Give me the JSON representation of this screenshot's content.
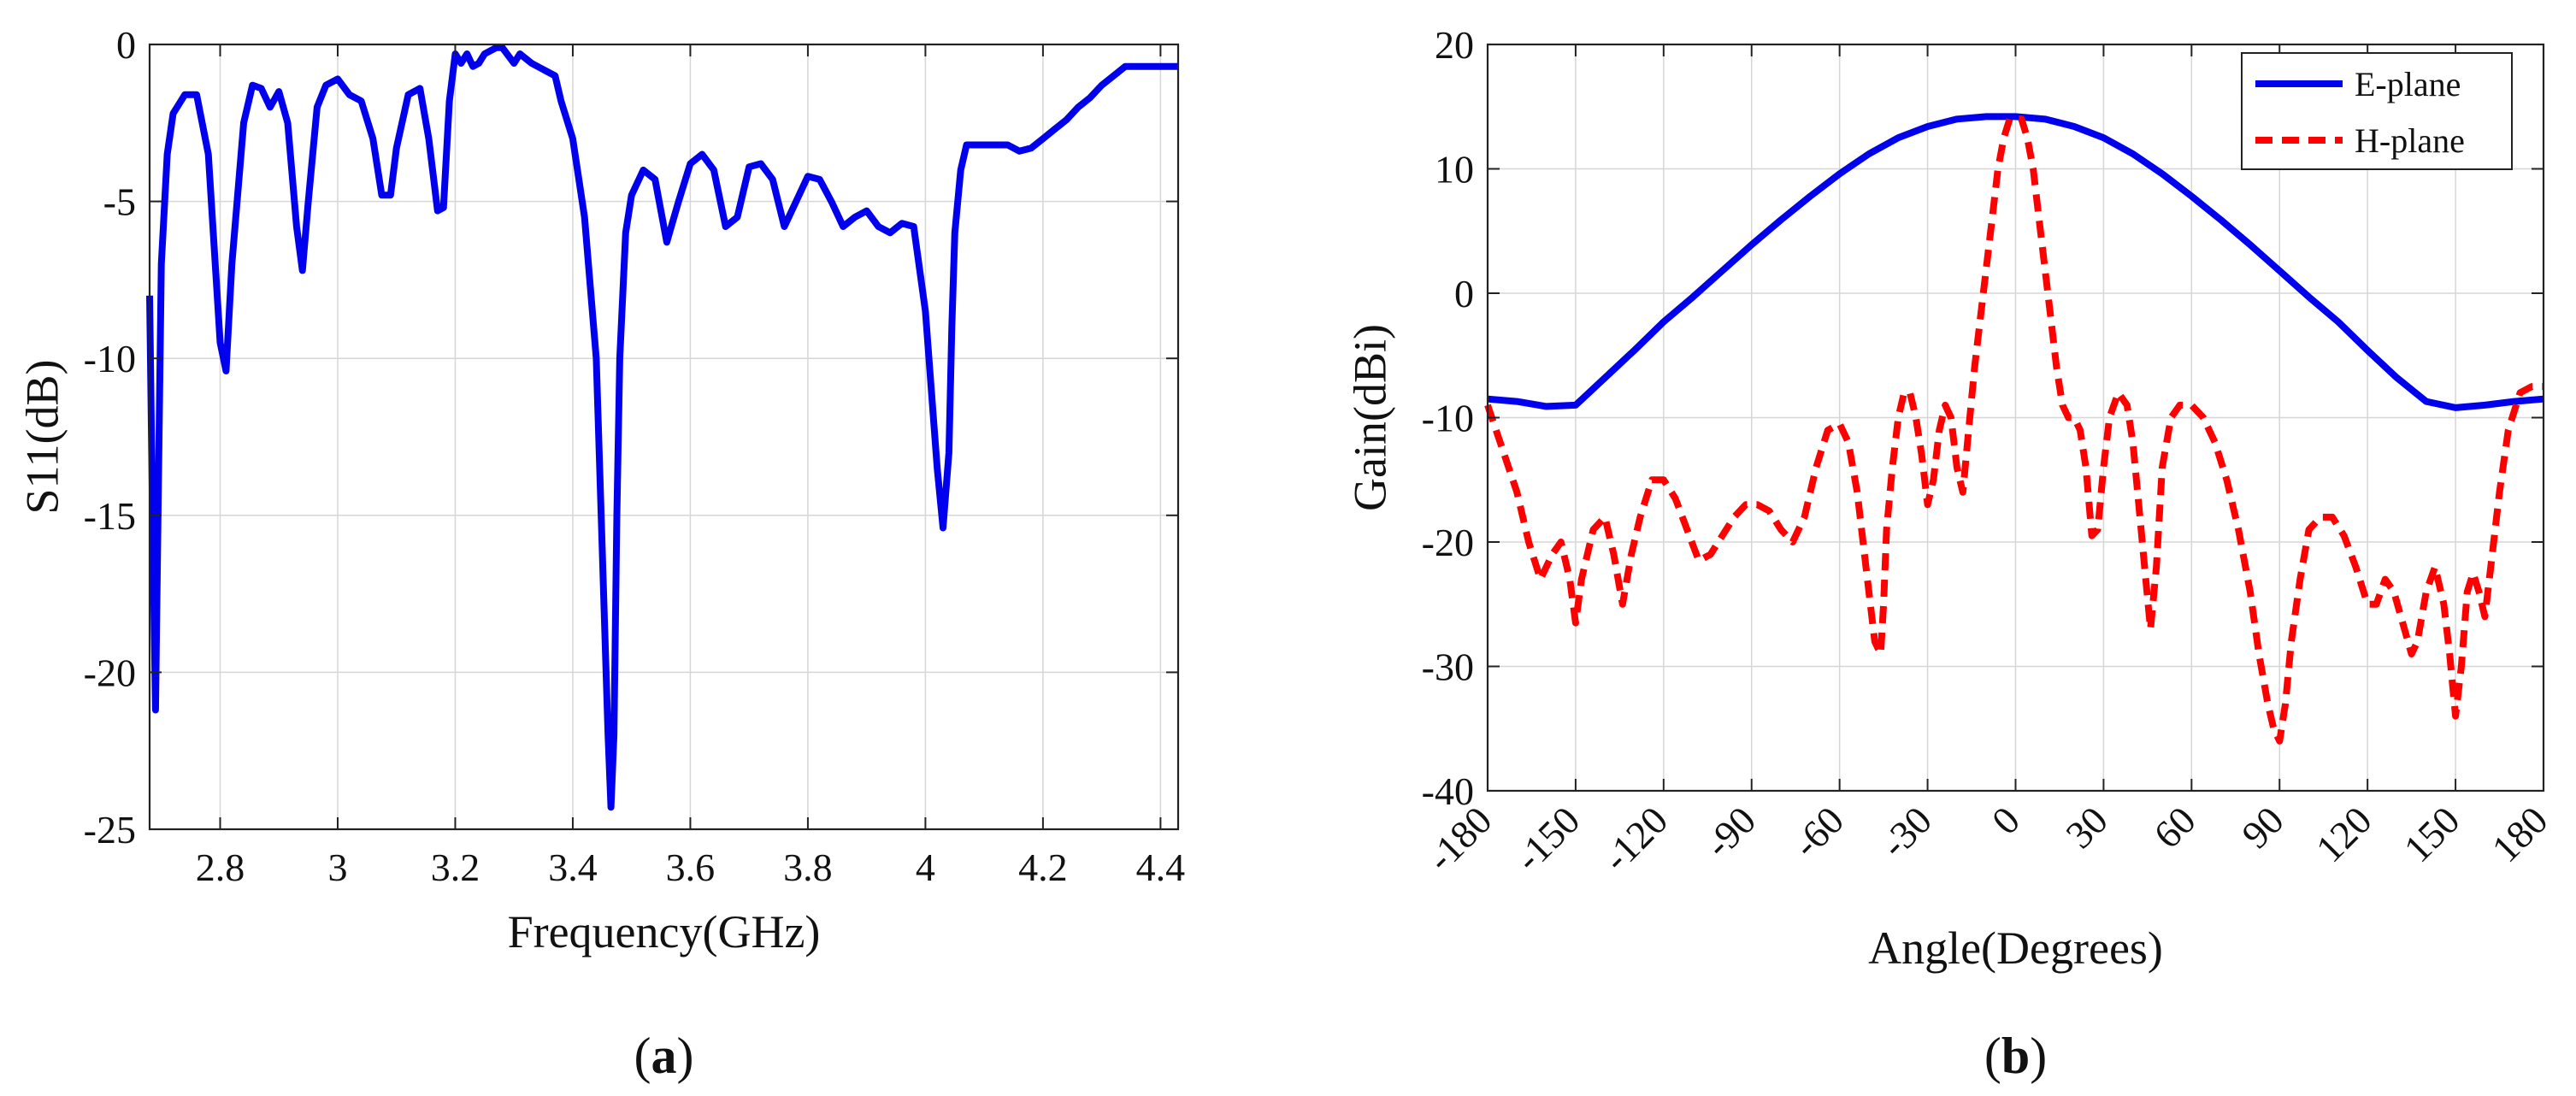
{
  "chart_data": [
    {
      "type": "line",
      "panel_label": "(a)",
      "panel_label_parts": {
        "open": "(",
        "letter": "a",
        "close": ")"
      },
      "title": "",
      "xlabel": "Frequency(GHz)",
      "ylabel": "S11(dB)",
      "xlim": [
        2.68,
        4.43
      ],
      "ylim": [
        -25,
        0
      ],
      "xticks": [
        2.8,
        3.0,
        3.2,
        3.4,
        3.6,
        3.8,
        4.0,
        4.2,
        4.4
      ],
      "xtick_labels": [
        "2.8",
        "3",
        "3.2",
        "3.4",
        "3.6",
        "3.8",
        "4",
        "4.2",
        "4.4"
      ],
      "yticks": [
        0,
        -5,
        -10,
        -15,
        -20,
        -25
      ],
      "ytick_labels": [
        "0",
        "-5",
        "-10",
        "-15",
        "-20",
        "-25"
      ],
      "grid": true,
      "series": [
        {
          "color": "#0000ee",
          "dash": "solid",
          "x": [
            2.68,
            2.685,
            2.69,
            2.695,
            2.7,
            2.71,
            2.72,
            2.74,
            2.76,
            2.78,
            2.8,
            2.81,
            2.82,
            2.84,
            2.855,
            2.87,
            2.885,
            2.9,
            2.915,
            2.93,
            2.94,
            2.95,
            2.965,
            2.98,
            3.0,
            3.02,
            3.04,
            3.06,
            3.075,
            3.09,
            3.1,
            3.12,
            3.14,
            3.155,
            3.17,
            3.18,
            3.19,
            3.2,
            3.21,
            3.22,
            3.23,
            3.24,
            3.25,
            3.27,
            3.28,
            3.3,
            3.31,
            3.33,
            3.35,
            3.37,
            3.38,
            3.4,
            3.42,
            3.44,
            3.45,
            3.46,
            3.465,
            3.47,
            3.475,
            3.48,
            3.49,
            3.5,
            3.52,
            3.54,
            3.56,
            3.58,
            3.6,
            3.62,
            3.64,
            3.66,
            3.68,
            3.7,
            3.72,
            3.74,
            3.76,
            3.78,
            3.8,
            3.82,
            3.84,
            3.86,
            3.88,
            3.9,
            3.92,
            3.94,
            3.96,
            3.98,
            4.0,
            4.01,
            4.02,
            4.03,
            4.04,
            4.045,
            4.05,
            4.06,
            4.07,
            4.09,
            4.11,
            4.14,
            4.16,
            4.18,
            4.2,
            4.22,
            4.24,
            4.26,
            4.28,
            4.3,
            4.32,
            4.34,
            4.36,
            4.38,
            4.4,
            4.43
          ],
          "y": [
            -8.0,
            -15.0,
            -21.2,
            -14.0,
            -7.0,
            -3.5,
            -2.2,
            -1.6,
            -1.6,
            -3.5,
            -9.5,
            -10.4,
            -7.0,
            -2.5,
            -1.3,
            -1.4,
            -2.0,
            -1.5,
            -2.5,
            -5.8,
            -7.2,
            -5.0,
            -2.0,
            -1.3,
            -1.1,
            -1.6,
            -1.8,
            -3.0,
            -4.8,
            -4.8,
            -3.3,
            -1.6,
            -1.4,
            -3.0,
            -5.3,
            -5.2,
            -1.8,
            -0.3,
            -0.6,
            -0.3,
            -0.7,
            -0.6,
            -0.3,
            -0.1,
            -0.1,
            -0.6,
            -0.3,
            -0.6,
            -0.8,
            -1.0,
            -1.8,
            -3.0,
            -5.5,
            -10.0,
            -16.0,
            -22.0,
            -24.3,
            -22.0,
            -15.0,
            -10.0,
            -6.0,
            -4.8,
            -4.0,
            -4.3,
            -6.3,
            -5.0,
            -3.8,
            -3.5,
            -4.0,
            -5.8,
            -5.5,
            -3.9,
            -3.8,
            -4.3,
            -5.8,
            -5.0,
            -4.2,
            -4.3,
            -5.0,
            -5.8,
            -5.5,
            -5.3,
            -5.8,
            -6.0,
            -5.7,
            -5.8,
            -8.5,
            -11.0,
            -13.5,
            -15.4,
            -13.0,
            -9.0,
            -6.0,
            -4.0,
            -3.2,
            -3.2,
            -3.2,
            -3.2,
            -3.4,
            -3.3,
            -3.0,
            -2.7,
            -2.4,
            -2.0,
            -1.7,
            -1.3,
            -1.0,
            -0.7,
            -0.7,
            -0.7,
            -0.7,
            -0.7
          ]
        }
      ]
    },
    {
      "type": "line",
      "panel_label": "(b)",
      "panel_label_parts": {
        "open": "(",
        "letter": "b",
        "close": ")"
      },
      "title": "",
      "xlabel": "Angle(Degrees)",
      "ylabel": "Gain(dBi)",
      "xlim": [
        -180,
        180
      ],
      "ylim": [
        -40,
        20
      ],
      "xticks": [
        -180,
        -150,
        -120,
        -90,
        -60,
        -30,
        0,
        30,
        60,
        90,
        120,
        150,
        180
      ],
      "xtick_labels": [
        "-180",
        "-150",
        "-120",
        "-90",
        "-60",
        "-30",
        "0",
        "30",
        "60",
        "90",
        "120",
        "150",
        "180"
      ],
      "yticks": [
        20,
        10,
        0,
        -10,
        -20,
        -30,
        -40
      ],
      "ytick_labels": [
        "20",
        "10",
        "0",
        "-10",
        "-20",
        "-30",
        "-40"
      ],
      "grid": true,
      "legend_position": "top-right",
      "series": [
        {
          "name": "E-plane",
          "color": "#0000ee",
          "dash": "solid",
          "x": [
            -180,
            -170,
            -160,
            -150,
            -140,
            -130,
            -120,
            -110,
            -100,
            -90,
            -80,
            -70,
            -60,
            -50,
            -40,
            -30,
            -20,
            -10,
            0,
            10,
            20,
            30,
            40,
            50,
            60,
            70,
            80,
            90,
            100,
            110,
            120,
            130,
            140,
            150,
            160,
            170,
            180
          ],
          "y": [
            -8.5,
            -8.7,
            -9.1,
            -9.0,
            -6.8,
            -4.6,
            -2.3,
            -0.3,
            1.8,
            3.9,
            5.9,
            7.8,
            9.6,
            11.2,
            12.5,
            13.4,
            14.0,
            14.2,
            14.2,
            14.0,
            13.4,
            12.5,
            11.2,
            9.6,
            7.8,
            5.9,
            3.9,
            1.8,
            -0.3,
            -2.3,
            -4.6,
            -6.8,
            -8.7,
            -9.2,
            -9.0,
            -8.7,
            -8.5
          ]
        },
        {
          "name": "H-plane",
          "color": "#ff0000",
          "dash": "dashed",
          "x": [
            -180,
            -175,
            -170,
            -166,
            -162,
            -158,
            -155,
            -152,
            -150,
            -148,
            -144,
            -140,
            -137,
            -134,
            -131,
            -128,
            -124,
            -120,
            -116,
            -112,
            -108,
            -104,
            -100,
            -96,
            -92,
            -88,
            -84,
            -80,
            -76,
            -72,
            -68,
            -64,
            -60,
            -57,
            -54,
            -51,
            -48,
            -46,
            -45,
            -44,
            -42,
            -40,
            -38,
            -36,
            -34,
            -32,
            -30,
            -28,
            -26,
            -24,
            -22,
            -20,
            -18,
            -16,
            -14,
            -12,
            -10,
            -8,
            -6,
            -4,
            -2,
            0,
            2,
            4,
            6,
            8,
            10,
            12,
            14,
            16,
            18,
            20,
            22,
            24,
            26,
            28,
            30,
            32,
            35,
            38,
            40,
            42,
            44,
            46,
            48,
            50,
            53,
            56,
            60,
            64,
            68,
            72,
            76,
            80,
            83,
            86,
            88,
            90,
            92,
            94,
            97,
            100,
            104,
            108,
            112,
            116,
            120,
            123,
            126,
            129,
            132,
            135,
            137,
            140,
            143,
            146,
            148,
            150,
            152,
            154,
            156,
            158,
            160,
            162,
            165,
            168,
            172,
            176,
            180
          ],
          "y": [
            -9.0,
            -12.5,
            -16.0,
            -20.0,
            -23.0,
            -21.0,
            -20.0,
            -23.0,
            -26.5,
            -23.0,
            -19.0,
            -18.0,
            -21.0,
            -25.0,
            -21.0,
            -18.0,
            -15.0,
            -15.0,
            -16.5,
            -19.0,
            -21.5,
            -21.0,
            -19.5,
            -18.0,
            -17.0,
            -17.0,
            -17.5,
            -19.0,
            -20.0,
            -18.0,
            -14.0,
            -11.0,
            -10.5,
            -12.0,
            -16.0,
            -22.0,
            -28.0,
            -29.0,
            -25.0,
            -19.0,
            -14.0,
            -10.0,
            -8.0,
            -8.0,
            -10.0,
            -13.0,
            -17.0,
            -15.0,
            -11.0,
            -9.0,
            -10.0,
            -14.0,
            -16.0,
            -11.0,
            -6.0,
            -2.0,
            2.0,
            6.0,
            10.0,
            12.5,
            14.0,
            14.0,
            14.0,
            12.5,
            10.0,
            6.0,
            2.0,
            -2.0,
            -6.0,
            -9.0,
            -10.0,
            -10.0,
            -11.0,
            -14.0,
            -19.5,
            -19.0,
            -14.0,
            -10.0,
            -8.0,
            -9.0,
            -12.0,
            -17.0,
            -22.0,
            -27.0,
            -22.0,
            -14.0,
            -10.0,
            -9.0,
            -9.0,
            -10.0,
            -12.0,
            -15.0,
            -19.0,
            -24.0,
            -29.0,
            -33.0,
            -35.0,
            -36.0,
            -33.0,
            -28.0,
            -23.0,
            -19.0,
            -18.0,
            -18.0,
            -19.5,
            -22.0,
            -25.0,
            -25.0,
            -23.0,
            -24.0,
            -26.5,
            -29.0,
            -28.0,
            -24.0,
            -22.0,
            -25.0,
            -29.0,
            -34.0,
            -30.0,
            -24.0,
            -22.5,
            -24.0,
            -26.0,
            -22.0,
            -16.0,
            -11.0,
            -8.0,
            -7.5,
            -7.5
          ]
        }
      ]
    }
  ]
}
